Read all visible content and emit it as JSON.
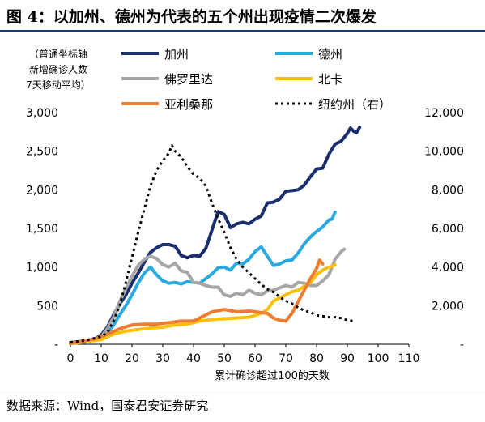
{
  "title": "图 4：以加州、德州为代表的五个州出现疫情二次爆发",
  "y_note": [
    "（普通坐标轴",
    "新增确诊人数",
    "7天移动平均）"
  ],
  "source": "数据来源：Wind，国泰君安证券研究",
  "chart_data": {
    "type": "line",
    "xlabel": "累计确诊超过100的天数",
    "xlim": [
      0,
      110
    ],
    "x_ticks": [
      "0",
      "10",
      "20",
      "30",
      "40",
      "50",
      "60",
      "70",
      "80",
      "90",
      "100",
      "110"
    ],
    "ylim_left": [
      0,
      3000
    ],
    "left_ticks": [
      "-",
      "500",
      "1,000",
      "1,500",
      "2,000",
      "2,500",
      "3,000"
    ],
    "ylim_right": [
      0,
      12000
    ],
    "right_ticks": [
      "-",
      "2,000",
      "4,000",
      "6,000",
      "8,000",
      "10,000",
      "12,000"
    ],
    "legend_placement": "top",
    "series": [
      {
        "name": "加州",
        "color": "#1a2f6e",
        "axis": "left",
        "dash": false,
        "points": [
          [
            0,
            20
          ],
          [
            4,
            40
          ],
          [
            8,
            70
          ],
          [
            10,
            120
          ],
          [
            12,
            220
          ],
          [
            14,
            380
          ],
          [
            16,
            520
          ],
          [
            18,
            640
          ],
          [
            20,
            790
          ],
          [
            22,
            920
          ],
          [
            24,
            1060
          ],
          [
            26,
            1190
          ],
          [
            28,
            1250
          ],
          [
            30,
            1290
          ],
          [
            32,
            1290
          ],
          [
            34,
            1270
          ],
          [
            36,
            1150
          ],
          [
            38,
            1120
          ],
          [
            40,
            1150
          ],
          [
            42,
            1140
          ],
          [
            44,
            1240
          ],
          [
            46,
            1480
          ],
          [
            48,
            1720
          ],
          [
            49,
            1700
          ],
          [
            50,
            1680
          ],
          [
            52,
            1510
          ],
          [
            54,
            1560
          ],
          [
            56,
            1580
          ],
          [
            58,
            1560
          ],
          [
            60,
            1620
          ],
          [
            62,
            1660
          ],
          [
            64,
            1830
          ],
          [
            66,
            1840
          ],
          [
            68,
            1880
          ],
          [
            70,
            1980
          ],
          [
            72,
            1990
          ],
          [
            74,
            2000
          ],
          [
            76,
            2060
          ],
          [
            78,
            2170
          ],
          [
            80,
            2270
          ],
          [
            82,
            2280
          ],
          [
            84,
            2460
          ],
          [
            86,
            2590
          ],
          [
            88,
            2630
          ],
          [
            90,
            2730
          ],
          [
            91,
            2800
          ],
          [
            92,
            2760
          ],
          [
            93,
            2740
          ],
          [
            94,
            2810
          ]
        ]
      },
      {
        "name": "德州",
        "color": "#2aa9e0",
        "axis": "left",
        "dash": false,
        "points": [
          [
            0,
            10
          ],
          [
            5,
            30
          ],
          [
            10,
            80
          ],
          [
            12,
            150
          ],
          [
            14,
            250
          ],
          [
            16,
            380
          ],
          [
            18,
            500
          ],
          [
            20,
            640
          ],
          [
            22,
            790
          ],
          [
            24,
            920
          ],
          [
            26,
            1000
          ],
          [
            28,
            900
          ],
          [
            30,
            820
          ],
          [
            32,
            790
          ],
          [
            34,
            800
          ],
          [
            36,
            780
          ],
          [
            38,
            810
          ],
          [
            40,
            800
          ],
          [
            42,
            790
          ],
          [
            44,
            850
          ],
          [
            46,
            910
          ],
          [
            48,
            990
          ],
          [
            50,
            1000
          ],
          [
            52,
            960
          ],
          [
            54,
            1050
          ],
          [
            56,
            1040
          ],
          [
            58,
            1100
          ],
          [
            60,
            1200
          ],
          [
            62,
            1260
          ],
          [
            64,
            1140
          ],
          [
            66,
            1020
          ],
          [
            68,
            1040
          ],
          [
            70,
            1080
          ],
          [
            72,
            1090
          ],
          [
            74,
            1180
          ],
          [
            76,
            1300
          ],
          [
            78,
            1390
          ],
          [
            80,
            1460
          ],
          [
            82,
            1520
          ],
          [
            84,
            1610
          ],
          [
            85,
            1620
          ],
          [
            86,
            1710
          ]
        ]
      },
      {
        "name": "佛罗里达",
        "color": "#a6a6a6",
        "axis": "left",
        "dash": false,
        "points": [
          [
            0,
            10
          ],
          [
            5,
            30
          ],
          [
            10,
            100
          ],
          [
            12,
            200
          ],
          [
            14,
            350
          ],
          [
            16,
            550
          ],
          [
            18,
            720
          ],
          [
            20,
            880
          ],
          [
            22,
            1020
          ],
          [
            24,
            1100
          ],
          [
            26,
            1140
          ],
          [
            28,
            1110
          ],
          [
            30,
            1030
          ],
          [
            32,
            1000
          ],
          [
            34,
            1050
          ],
          [
            36,
            950
          ],
          [
            38,
            930
          ],
          [
            40,
            800
          ],
          [
            42,
            790
          ],
          [
            44,
            760
          ],
          [
            46,
            740
          ],
          [
            48,
            740
          ],
          [
            50,
            640
          ],
          [
            52,
            620
          ],
          [
            54,
            660
          ],
          [
            56,
            640
          ],
          [
            58,
            700
          ],
          [
            60,
            660
          ],
          [
            62,
            640
          ],
          [
            64,
            690
          ],
          [
            66,
            700
          ],
          [
            68,
            730
          ],
          [
            70,
            760
          ],
          [
            72,
            740
          ],
          [
            74,
            800
          ],
          [
            76,
            790
          ],
          [
            78,
            760
          ],
          [
            80,
            760
          ],
          [
            82,
            820
          ],
          [
            84,
            900
          ],
          [
            86,
            1100
          ],
          [
            88,
            1200
          ],
          [
            89,
            1230
          ]
        ]
      },
      {
        "name": "北卡",
        "color": "#fcc00a",
        "axis": "left",
        "dash": false,
        "points": [
          [
            0,
            10
          ],
          [
            10,
            60
          ],
          [
            14,
            130
          ],
          [
            18,
            170
          ],
          [
            22,
            190
          ],
          [
            26,
            210
          ],
          [
            30,
            220
          ],
          [
            34,
            250
          ],
          [
            38,
            260
          ],
          [
            42,
            300
          ],
          [
            46,
            320
          ],
          [
            50,
            330
          ],
          [
            54,
            340
          ],
          [
            58,
            350
          ],
          [
            62,
            400
          ],
          [
            64,
            450
          ],
          [
            66,
            560
          ],
          [
            68,
            600
          ],
          [
            70,
            640
          ],
          [
            72,
            680
          ],
          [
            74,
            700
          ],
          [
            76,
            750
          ],
          [
            78,
            800
          ],
          [
            80,
            900
          ],
          [
            82,
            960
          ],
          [
            84,
            1000
          ],
          [
            85,
            1010
          ],
          [
            86,
            1030
          ]
        ]
      },
      {
        "name": "亚利桑那",
        "color": "#ed7d31",
        "axis": "left",
        "dash": false,
        "points": [
          [
            0,
            10
          ],
          [
            8,
            70
          ],
          [
            12,
            130
          ],
          [
            16,
            200
          ],
          [
            20,
            250
          ],
          [
            24,
            260
          ],
          [
            28,
            260
          ],
          [
            32,
            280
          ],
          [
            36,
            300
          ],
          [
            40,
            300
          ],
          [
            42,
            340
          ],
          [
            46,
            420
          ],
          [
            50,
            450
          ],
          [
            54,
            420
          ],
          [
            58,
            430
          ],
          [
            62,
            410
          ],
          [
            64,
            400
          ],
          [
            66,
            340
          ],
          [
            68,
            310
          ],
          [
            70,
            300
          ],
          [
            72,
            400
          ],
          [
            74,
            550
          ],
          [
            76,
            700
          ],
          [
            78,
            850
          ],
          [
            80,
            980
          ],
          [
            81,
            1090
          ],
          [
            82,
            1040
          ]
        ]
      },
      {
        "name": "纽约州（右）",
        "color": "#000000",
        "axis": "right",
        "dash": true,
        "points": [
          [
            0,
            100
          ],
          [
            5,
            200
          ],
          [
            10,
            400
          ],
          [
            12,
            600
          ],
          [
            14,
            1200
          ],
          [
            16,
            2000
          ],
          [
            18,
            3200
          ],
          [
            20,
            4500
          ],
          [
            22,
            5800
          ],
          [
            24,
            7000
          ],
          [
            26,
            8200
          ],
          [
            28,
            9000
          ],
          [
            30,
            9500
          ],
          [
            32,
            9900
          ],
          [
            33,
            10300
          ],
          [
            34,
            10000
          ],
          [
            36,
            9700
          ],
          [
            38,
            9200
          ],
          [
            40,
            8800
          ],
          [
            42,
            8600
          ],
          [
            44,
            8200
          ],
          [
            46,
            7300
          ],
          [
            48,
            6500
          ],
          [
            50,
            5800
          ],
          [
            52,
            5000
          ],
          [
            54,
            4400
          ],
          [
            56,
            4000
          ],
          [
            58,
            3700
          ],
          [
            60,
            3400
          ],
          [
            62,
            3100
          ],
          [
            64,
            2850
          ],
          [
            66,
            2700
          ],
          [
            68,
            2450
          ],
          [
            70,
            2250
          ],
          [
            72,
            2100
          ],
          [
            74,
            1900
          ],
          [
            76,
            1750
          ],
          [
            78,
            1650
          ],
          [
            80,
            1500
          ],
          [
            82,
            1450
          ],
          [
            84,
            1400
          ],
          [
            86,
            1400
          ],
          [
            88,
            1350
          ],
          [
            90,
            1250
          ],
          [
            92,
            1200
          ]
        ]
      }
    ]
  }
}
